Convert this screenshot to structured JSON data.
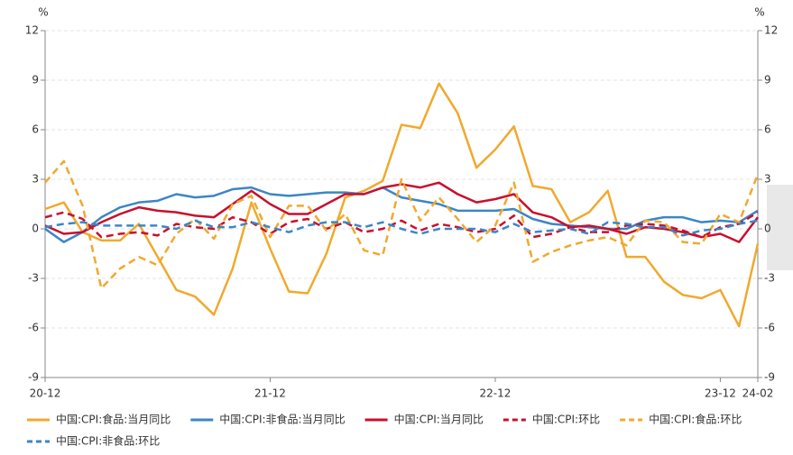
{
  "chart_data": {
    "type": "line",
    "y_label": "%",
    "y2_label": "%",
    "categories": [
      "20-12",
      null,
      null,
      null,
      null,
      null,
      null,
      null,
      null,
      null,
      null,
      null,
      "21-12",
      null,
      null,
      null,
      null,
      null,
      null,
      null,
      null,
      null,
      null,
      null,
      "22-12",
      null,
      null,
      null,
      null,
      null,
      null,
      null,
      null,
      null,
      null,
      null,
      "23-12",
      null,
      "24-02"
    ],
    "ylim": [
      -9,
      12
    ],
    "yticks": [
      -9,
      -6,
      -3,
      0,
      3,
      6,
      9,
      12
    ],
    "y2lim": [
      -9,
      12
    ],
    "y2ticks": [
      -9,
      -6,
      -3,
      0,
      3,
      6,
      9,
      12
    ],
    "grid": true,
    "legend": "bottom",
    "series": [
      {
        "name": "中国:CPI:食品:当月同比",
        "color": "#f0a92e",
        "style": "solid",
        "values": [
          1.2,
          1.6,
          -0.2,
          -0.7,
          -0.7,
          0.3,
          -1.7,
          -3.7,
          -4.1,
          -5.2,
          -2.4,
          1.6,
          -1.2,
          -3.8,
          -3.9,
          -1.5,
          1.9,
          2.3,
          2.9,
          6.3,
          6.1,
          8.8,
          7.0,
          3.7,
          4.8,
          6.2,
          2.6,
          2.4,
          0.4,
          1.0,
          2.3,
          -1.7,
          -1.7,
          -3.2,
          -4.0,
          -4.2,
          -3.7,
          -5.9,
          -0.9
        ]
      },
      {
        "name": "中国:CPI:非食品:当月同比",
        "color": "#3b86c6",
        "style": "solid",
        "values": [
          0.0,
          -0.8,
          -0.2,
          0.7,
          1.3,
          1.6,
          1.7,
          2.1,
          1.9,
          2.0,
          2.4,
          2.5,
          2.1,
          2.0,
          2.1,
          2.2,
          2.2,
          2.1,
          2.5,
          1.9,
          1.7,
          1.5,
          1.1,
          1.1,
          1.1,
          1.2,
          0.6,
          0.3,
          0.2,
          0.1,
          0.0,
          0.0,
          0.5,
          0.7,
          0.7,
          0.4,
          0.5,
          0.4,
          1.1
        ]
      },
      {
        "name": "中国:CPI:当月同比",
        "color": "#c8102e",
        "style": "solid",
        "values": [
          0.2,
          -0.3,
          -0.2,
          0.4,
          0.9,
          1.3,
          1.1,
          1.0,
          0.8,
          0.7,
          1.5,
          2.3,
          1.5,
          0.9,
          0.9,
          1.5,
          2.1,
          2.1,
          2.5,
          2.7,
          2.5,
          2.8,
          2.1,
          1.6,
          1.8,
          2.1,
          1.0,
          0.7,
          0.1,
          0.2,
          0.0,
          -0.3,
          0.1,
          0.0,
          -0.2,
          -0.5,
          -0.3,
          -0.8,
          0.7
        ]
      },
      {
        "name": "中国:CPI:环比",
        "color": "#c8102e",
        "style": "dashed",
        "values": [
          0.7,
          1.0,
          0.6,
          -0.5,
          -0.3,
          -0.2,
          -0.4,
          0.3,
          0.1,
          0.0,
          0.7,
          0.4,
          -0.3,
          0.4,
          0.6,
          0.0,
          0.4,
          -0.2,
          0.0,
          0.5,
          -0.1,
          0.3,
          0.1,
          -0.2,
          0.0,
          0.8,
          -0.5,
          -0.3,
          0.1,
          -0.2,
          -0.2,
          0.2,
          0.3,
          0.2,
          -0.1,
          -0.5,
          0.1,
          0.3,
          1.0
        ]
      },
      {
        "name": "中国:CPI:食品:环比",
        "color": "#f0a92e",
        "style": "dashed",
        "values": [
          2.8,
          4.1,
          1.4,
          -3.6,
          -2.4,
          -1.7,
          -2.2,
          -0.3,
          0.6,
          -0.6,
          1.5,
          2.0,
          -0.5,
          1.4,
          1.4,
          -0.1,
          0.9,
          -1.3,
          -1.6,
          3.0,
          0.5,
          1.9,
          0.6,
          -0.8,
          0.2,
          2.8,
          -2.0,
          -1.4,
          -1.0,
          -0.7,
          -0.5,
          -1.0,
          0.5,
          0.4,
          -0.8,
          -0.9,
          0.9,
          0.4,
          3.3
        ]
      },
      {
        "name": "中国:CPI:非食品:环比",
        "color": "#3b86c6",
        "style": "dashed",
        "values": [
          0.1,
          0.3,
          0.4,
          0.2,
          0.2,
          0.2,
          0.2,
          0.0,
          0.5,
          0.1,
          0.1,
          0.4,
          0.1,
          -0.2,
          0.2,
          0.4,
          0.4,
          0.1,
          0.4,
          0.0,
          -0.3,
          0.0,
          0.0,
          0.0,
          -0.2,
          0.3,
          -0.2,
          -0.1,
          0.0,
          -0.3,
          0.4,
          0.3,
          0.1,
          0.1,
          -0.4,
          -0.1,
          0.0,
          0.3,
          0.5
        ]
      }
    ]
  }
}
